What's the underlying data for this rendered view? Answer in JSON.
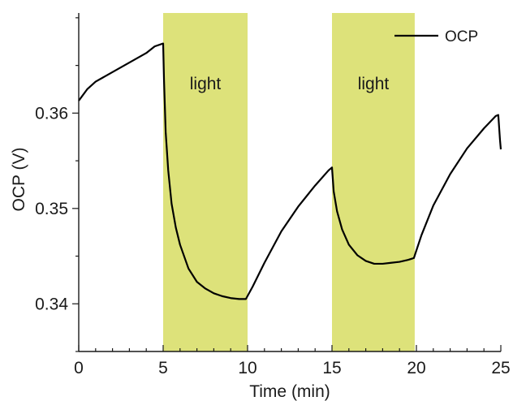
{
  "chart_data": {
    "type": "line",
    "xlabel": "Time (min)",
    "ylabel": "OCP (V)",
    "xlim": [
      0,
      25
    ],
    "ylim": [
      0.335,
      0.3705
    ],
    "x_ticks": [
      0,
      5,
      10,
      15,
      20,
      25
    ],
    "x_tick_labels": [
      "0",
      "5",
      "10",
      "15",
      "20",
      "25"
    ],
    "y_ticks": [
      0.34,
      0.35,
      0.36
    ],
    "y_tick_labels": [
      "0.34",
      "0.35",
      "0.36"
    ],
    "grid": false,
    "legend_position": "top-right",
    "colors": {
      "line": "#000000",
      "band": "#dde27a",
      "axis": "#1a1a1a"
    },
    "bands": [
      {
        "x0": 5,
        "x1": 10,
        "label": "light"
      },
      {
        "x0": 15,
        "x1": 19.9,
        "label": "light"
      }
    ],
    "series": [
      {
        "name": "OCP",
        "points": [
          [
            0,
            0.3613
          ],
          [
            0.5,
            0.3625
          ],
          [
            1,
            0.3633
          ],
          [
            2,
            0.3643
          ],
          [
            3,
            0.3653
          ],
          [
            4,
            0.3663
          ],
          [
            4.5,
            0.367
          ],
          [
            5,
            0.3673
          ],
          [
            5.05,
            0.3635
          ],
          [
            5.15,
            0.358
          ],
          [
            5.3,
            0.354
          ],
          [
            5.5,
            0.3505
          ],
          [
            5.75,
            0.348
          ],
          [
            6,
            0.3462
          ],
          [
            6.5,
            0.3437
          ],
          [
            7,
            0.3423
          ],
          [
            7.5,
            0.3416
          ],
          [
            8,
            0.3411
          ],
          [
            8.5,
            0.3408
          ],
          [
            9,
            0.3406
          ],
          [
            9.5,
            0.3405
          ],
          [
            9.9,
            0.3405
          ],
          [
            10.3,
            0.3418
          ],
          [
            11,
            0.3443
          ],
          [
            12,
            0.3476
          ],
          [
            13,
            0.3502
          ],
          [
            14,
            0.3524
          ],
          [
            14.8,
            0.354
          ],
          [
            15,
            0.3543
          ],
          [
            15.1,
            0.3518
          ],
          [
            15.3,
            0.3497
          ],
          [
            15.6,
            0.3478
          ],
          [
            16,
            0.3462
          ],
          [
            16.5,
            0.3451
          ],
          [
            17,
            0.3445
          ],
          [
            17.5,
            0.3442
          ],
          [
            18,
            0.3442
          ],
          [
            18.5,
            0.3443
          ],
          [
            19,
            0.3444
          ],
          [
            19.5,
            0.3446
          ],
          [
            19.85,
            0.3448
          ],
          [
            20.3,
            0.3472
          ],
          [
            21,
            0.3503
          ],
          [
            22,
            0.3536
          ],
          [
            23,
            0.3563
          ],
          [
            24,
            0.3584
          ],
          [
            24.7,
            0.3597
          ],
          [
            24.85,
            0.3598
          ],
          [
            24.95,
            0.3572
          ],
          [
            25,
            0.3562
          ]
        ]
      }
    ]
  }
}
